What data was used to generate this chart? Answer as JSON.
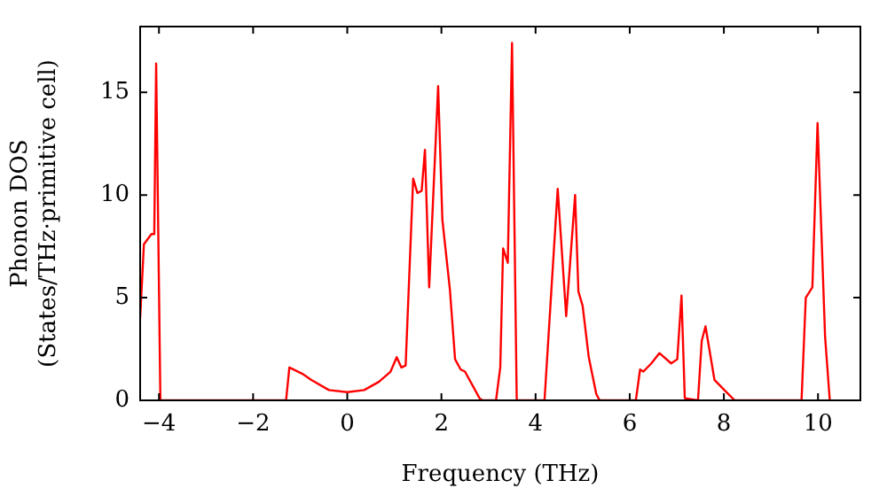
{
  "chart_data": {
    "type": "line",
    "xlabel": "Frequency (THz)",
    "ylabel": "Phonon DOS\n(States/THz·primitive cell)",
    "xlim": [
      -4.4,
      10.9
    ],
    "ylim": [
      0,
      18.2
    ],
    "xticks": [
      {
        "value": -4,
        "label": "−4"
      },
      {
        "value": -2,
        "label": "−2"
      },
      0,
      2,
      4,
      6,
      8,
      10
    ],
    "yticks": [
      0,
      5,
      10,
      15
    ],
    "grid": false,
    "legend": false,
    "marker": "none",
    "line_style": "solid",
    "series": [
      {
        "color": "#ff0000",
        "x": [
          -4.4,
          -4.32,
          -4.16,
          -4.1,
          -4.06,
          -3.97,
          -1.3,
          -1.23,
          -0.96,
          -0.77,
          -0.39,
          0,
          0.36,
          0.67,
          0.92,
          1.05,
          1.15,
          1.24,
          1.4,
          1.49,
          1.58,
          1.65,
          1.74,
          1.93,
          2.02,
          2.18,
          2.29,
          2.41,
          2.5,
          2.81,
          2.87,
          3.16,
          3.25,
          3.31,
          3.41,
          3.5,
          3.6,
          4.19,
          4.47,
          4.65,
          4.84,
          4.91,
          5.0,
          5.13,
          5.29,
          5.36,
          6.13,
          6.22,
          6.29,
          6.46,
          6.63,
          6.88,
          7.01,
          7.1,
          7.17,
          7.45,
          7.53,
          7.61,
          7.8,
          8.01,
          8.23,
          9.65,
          9.74,
          9.88,
          9.99,
          10.15,
          10.25
        ],
        "values": [
          4.0,
          7.6,
          8.1,
          8.1,
          16.4,
          0,
          0,
          1.6,
          1.3,
          1.0,
          0.5,
          0.4,
          0.5,
          0.9,
          1.4,
          2.1,
          1.6,
          1.7,
          10.8,
          10.1,
          10.2,
          12.2,
          5.5,
          15.3,
          8.8,
          5.4,
          2.0,
          1.5,
          1.4,
          0.1,
          0,
          0,
          1.6,
          7.4,
          6.7,
          17.4,
          0,
          0,
          10.3,
          4.1,
          10.0,
          5.3,
          4.6,
          2.1,
          0.3,
          0,
          0,
          1.5,
          1.4,
          1.8,
          2.3,
          1.8,
          2.0,
          5.1,
          0.1,
          0,
          2.9,
          3.6,
          1.0,
          0.5,
          0,
          0,
          5.0,
          5.5,
          13.5,
          3.1,
          0
        ]
      }
    ]
  }
}
